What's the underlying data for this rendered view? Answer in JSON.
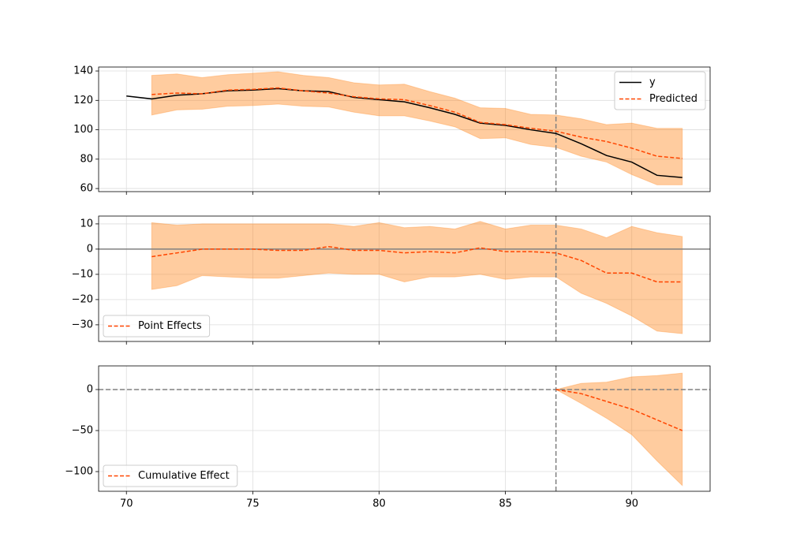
{
  "chart_data": [
    {
      "type": "line",
      "x": [
        70,
        71,
        72,
        73,
        74,
        75,
        76,
        77,
        78,
        79,
        80,
        81,
        82,
        83,
        84,
        85,
        86,
        87,
        88,
        89,
        90,
        91,
        92
      ],
      "series": [
        {
          "name": "y",
          "color": "#000000",
          "style": "solid",
          "values": [
            123,
            121,
            123.5,
            124.5,
            126.5,
            127,
            128,
            126.5,
            126,
            122,
            120.5,
            119,
            115,
            110.5,
            104.5,
            103,
            100,
            97.5,
            90.5,
            82.5,
            78,
            69,
            67.5
          ]
        },
        {
          "name": "Predicted",
          "color": "#ff4500",
          "style": "dashed",
          "values": [
            null,
            124,
            125,
            124.5,
            127,
            127.5,
            128.5,
            126.5,
            125,
            122.5,
            121,
            120.5,
            116.5,
            112,
            105,
            103.5,
            101,
            99,
            95,
            92,
            87.5,
            82,
            80.5
          ]
        }
      ],
      "band": {
        "color": "#ff7f0e",
        "lower": [
          null,
          110,
          113.5,
          114,
          116,
          116.5,
          117.5,
          116,
          115.5,
          112,
          109.5,
          109.5,
          106,
          102,
          94,
          94.5,
          90,
          88,
          82,
          78,
          69.5,
          62.5,
          62.5
        ],
        "upper": [
          null,
          137,
          138,
          135.5,
          137.5,
          138.5,
          139.5,
          137,
          135.5,
          132,
          130.5,
          131,
          126,
          121.5,
          115,
          114.5,
          110.5,
          110,
          107.5,
          103.5,
          104.5,
          101,
          101
        ]
      },
      "vline": 87,
      "xlim": [
        68.9,
        93.1
      ],
      "xticks": [
        70,
        75,
        80,
        85,
        90
      ],
      "ylim": [
        57.9,
        142.7
      ],
      "yticks": [
        60,
        80,
        100,
        120,
        140
      ],
      "grid": true,
      "legend": "upper right"
    },
    {
      "type": "line",
      "x": [
        71,
        72,
        73,
        74,
        75,
        76,
        77,
        78,
        79,
        80,
        81,
        82,
        83,
        84,
        85,
        86,
        87,
        88,
        89,
        90,
        91,
        92
      ],
      "series": [
        {
          "name": "Point Effects",
          "color": "#ff4500",
          "style": "dashed",
          "values": [
            -3,
            -1.5,
            0,
            0,
            0,
            -0.5,
            -0.5,
            1,
            -0.5,
            -0.5,
            -1.5,
            -1,
            -1.5,
            0.5,
            -1,
            -1,
            -1.5,
            -4.5,
            -9.5,
            -9.5,
            -13,
            -13
          ]
        }
      ],
      "band": {
        "color": "#ff7f0e",
        "lower": [
          -16,
          -14.5,
          -10.5,
          -11,
          -11.5,
          -11.5,
          -10.5,
          -9.5,
          -10,
          -10,
          -13,
          -11,
          -11,
          -10,
          -12,
          -11,
          -11,
          -17.5,
          -21.5,
          -26.5,
          -32.5,
          -33.5
        ],
        "upper": [
          10.5,
          9.5,
          10,
          10,
          10,
          10,
          10,
          10,
          9,
          10.5,
          8.5,
          9,
          8,
          11,
          8,
          9.5,
          9.5,
          8,
          4.5,
          9,
          6.5,
          5
        ]
      },
      "vline": 87,
      "hline": 0,
      "hline_style": "solid",
      "xlim": [
        68.9,
        93.1
      ],
      "xticks": [
        70,
        75,
        80,
        85,
        90
      ],
      "ylim": [
        -36.6,
        13.1
      ],
      "yticks": [
        {
          "value": -30,
          "label": "−30"
        },
        {
          "value": -20,
          "label": "−20"
        },
        {
          "value": -10,
          "label": "−10"
        },
        0,
        10
      ],
      "grid": true,
      "legend": "lower left"
    },
    {
      "type": "line",
      "x": [
        87,
        88,
        89,
        90,
        91,
        92
      ],
      "series": [
        {
          "name": "Cumulative Effect",
          "color": "#ff4500",
          "style": "dashed",
          "values": [
            0,
            -5,
            -14.5,
            -24,
            -37,
            -50
          ]
        }
      ],
      "band": {
        "color": "#ff7f0e",
        "lower": [
          0,
          -17,
          -35,
          -55,
          -87,
          -117
        ],
        "upper": [
          0,
          7.5,
          9,
          15.5,
          17,
          20
        ]
      },
      "vline": 87,
      "hline": 0,
      "hline_style": "dashed",
      "xlim": [
        68.9,
        93.1
      ],
      "xticks": [
        70,
        75,
        80,
        85,
        90
      ],
      "ylim": [
        -124,
        28.8
      ],
      "yticks": [
        {
          "value": -100,
          "label": "−100"
        },
        {
          "value": -50,
          "label": "−50"
        },
        0
      ],
      "grid": true,
      "legend": "lower left"
    }
  ]
}
